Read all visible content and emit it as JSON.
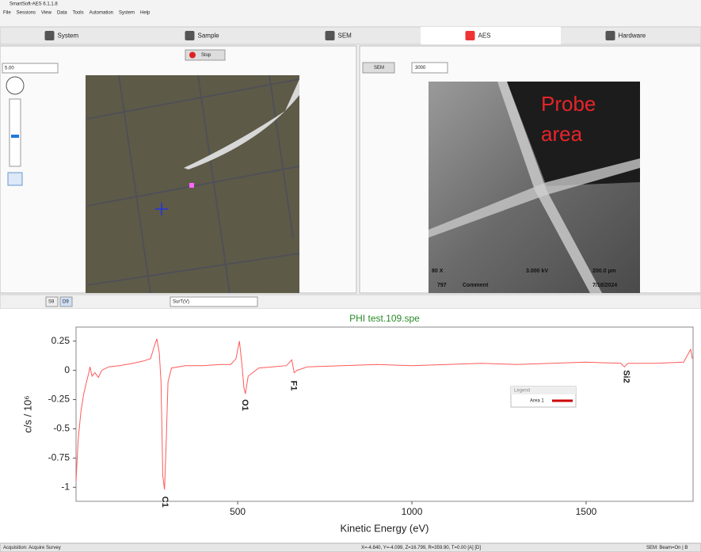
{
  "window": {
    "title": "SmartSoft-AES 6.1.1.8",
    "menu": [
      "File",
      "Sessions",
      "View",
      "Data",
      "Tools",
      "Automation",
      "System",
      "Help"
    ]
  },
  "tabs": [
    "System",
    "Sample",
    "SEM",
    "AES",
    "Hardware"
  ],
  "left_panel": {
    "stop_button": "Stop",
    "zoom": "5.00"
  },
  "sem_panel": {
    "mode": "SEM",
    "kv_select": "3000",
    "annotation": [
      "Probe",
      "area"
    ],
    "info": [
      "80 X",
      "3.000 kV",
      "200.0 µm",
      "797",
      "Comment",
      "7/18/2024"
    ]
  },
  "spectrum_toolbar": {
    "buttons": [
      "S9",
      "D9"
    ],
    "select": "SurT(V)"
  },
  "chart_data": {
    "type": "line",
    "title": "PHI test.109.spe",
    "x_label": "Kinetic Energy (eV)",
    "y_label": "c/s / 10⁶",
    "x": [
      36,
      42,
      50,
      58,
      66,
      72,
      76,
      82,
      90,
      100,
      110,
      130,
      160,
      200,
      230,
      250,
      260,
      268,
      275,
      280,
      285,
      290,
      295,
      300,
      310,
      350,
      400,
      450,
      480,
      495,
      505,
      512,
      518,
      522,
      530,
      560,
      600,
      640,
      655,
      662,
      670,
      700,
      800,
      900,
      1000,
      1100,
      1200,
      1300,
      1400,
      1500,
      1600,
      1610,
      1620,
      1700,
      1780,
      1800,
      1805
    ],
    "series": [
      {
        "name": "Area 1",
        "color": "#ff5a5a",
        "values": [
          -0.95,
          -0.6,
          -0.35,
          -0.2,
          -0.1,
          -0.03,
          0.03,
          -0.05,
          -0.02,
          -0.06,
          0.0,
          0.03,
          0.04,
          0.06,
          0.08,
          0.1,
          0.2,
          0.27,
          0.15,
          -0.1,
          -0.9,
          -1.02,
          -0.6,
          -0.1,
          0.02,
          0.04,
          0.04,
          0.05,
          0.05,
          0.1,
          0.25,
          0.05,
          -0.15,
          -0.2,
          -0.05,
          0.02,
          0.03,
          0.04,
          0.09,
          -0.02,
          0.0,
          0.03,
          0.04,
          0.05,
          0.04,
          0.05,
          0.06,
          0.05,
          0.06,
          0.07,
          0.06,
          0.03,
          0.06,
          0.06,
          0.07,
          0.18,
          0.1
        ]
      }
    ],
    "xlim": [
      36,
      1807
    ],
    "ylim": [
      -1.12,
      0.37
    ],
    "xticks": [
      500,
      1000,
      1500
    ],
    "yticks": [
      0.25,
      0,
      -0.25,
      -0.5,
      -0.75,
      -1
    ],
    "legend_title": "Legend",
    "legend": "right",
    "annotations": [
      {
        "text": "C1",
        "x": 290,
        "y": -1.05
      },
      {
        "text": "O1",
        "x": 520,
        "y": -0.22
      },
      {
        "text": "F1",
        "x": 660,
        "y": -0.06
      },
      {
        "text": "Si2",
        "x": 1615,
        "y": 0.03
      }
    ]
  },
  "status_bar": [
    "Acquisition: Acquire Survey",
    "X=-4.840, Y=-4.099, Z=16.799, R=359.90, T=0.00 [A] [D]",
    "SEM: Beam=On | B"
  ]
}
